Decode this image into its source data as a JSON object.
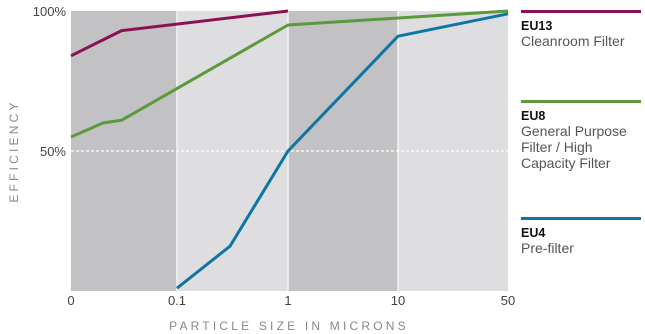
{
  "chart_data": {
    "type": "line",
    "xlabel": "PARTICLE SIZE IN MICRONS",
    "ylabel": "EFFICIENCY",
    "x_scale": "log",
    "x_ticks": [
      "0",
      "0.1",
      "1",
      "10",
      "50"
    ],
    "y_ticks": [
      "100%",
      "50%"
    ],
    "ylim": [
      0,
      100
    ],
    "grid": "alternating vertical bands, dashed line at 50%",
    "series": [
      {
        "name": "EU13",
        "color": "#8b1152",
        "points": [
          {
            "x": "0",
            "y": 84
          },
          {
            "x": "0.03",
            "y": 93
          },
          {
            "x": "1",
            "y": 100
          }
        ]
      },
      {
        "name": "EU8",
        "color": "#5a9a3c",
        "points": [
          {
            "x": "0",
            "y": 55
          },
          {
            "x": "0.02",
            "y": 60
          },
          {
            "x": "0.03",
            "y": 61
          },
          {
            "x": "1",
            "y": 95
          },
          {
            "x": "50",
            "y": 100
          }
        ]
      },
      {
        "name": "EU4",
        "color": "#0f75a3",
        "points": [
          {
            "x": "0.1",
            "y": 1
          },
          {
            "x": "0.3",
            "y": 16
          },
          {
            "x": "1",
            "y": 50
          },
          {
            "x": "10",
            "y": 91
          },
          {
            "x": "50",
            "y": 99
          }
        ]
      }
    ]
  },
  "legend": [
    {
      "code": "EU13",
      "desc": "Cleanroom Filter",
      "color": "#8b1152"
    },
    {
      "code": "EU8",
      "desc": "General Purpose Filter / High Capacity Filter",
      "color": "#5a9a3c"
    },
    {
      "code": "EU4",
      "desc": "Pre-filter",
      "color": "#0f75a3"
    }
  ]
}
